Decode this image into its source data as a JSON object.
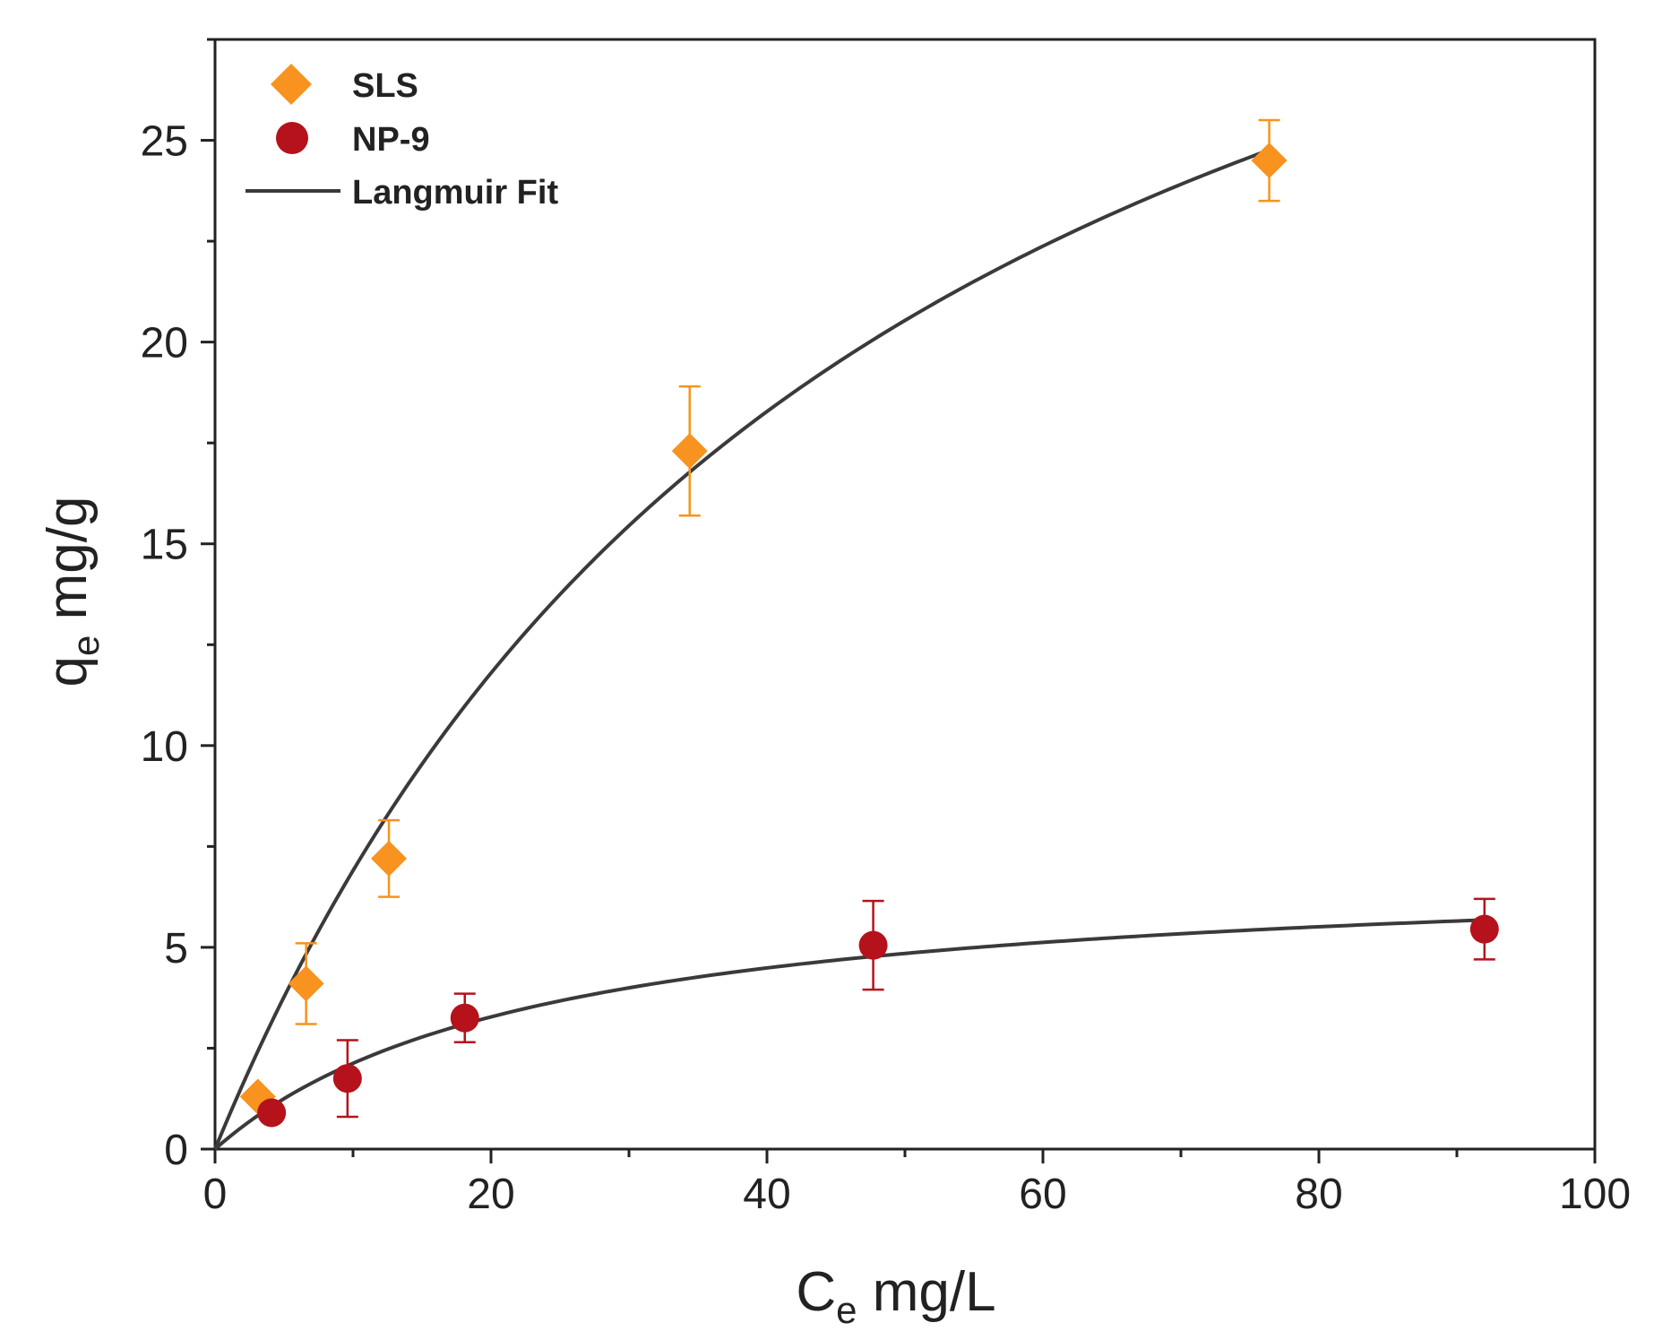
{
  "chart_data": {
    "type": "scatter",
    "title": "",
    "xlabel": {
      "main": "C",
      "sub": "e",
      "unit": " mg/L"
    },
    "ylabel": {
      "main": "q",
      "sub": "e",
      "unit": " mg/g"
    },
    "xlim": [
      0,
      100
    ],
    "ylim": [
      0,
      27.5
    ],
    "xticks": [
      0,
      20,
      40,
      60,
      80,
      100
    ],
    "xtick_labels": [
      "0",
      "20",
      "40",
      "60",
      "80",
      "100"
    ],
    "yticks": [
      0,
      5,
      10,
      15,
      20,
      25
    ],
    "ytick_labels": [
      "0",
      "5",
      "10",
      "15",
      "20",
      "25"
    ],
    "legend_position": "top-left",
    "grid": false,
    "series": [
      {
        "name": "SLS",
        "marker": "diamond",
        "color": "#F7931E",
        "points": [
          {
            "x": 3.1,
            "y": 1.3,
            "err": 0
          },
          {
            "x": 6.6,
            "y": 4.1,
            "err": 1.0
          },
          {
            "x": 12.6,
            "y": 7.2,
            "err": 0.95
          },
          {
            "x": 34.4,
            "y": 17.3,
            "err": 1.6
          },
          {
            "x": 76.4,
            "y": 24.5,
            "err": 1.0
          }
        ]
      },
      {
        "name": "NP-9",
        "marker": "circle",
        "color": "#B5121B",
        "points": [
          {
            "x": 4.1,
            "y": 0.9,
            "err": 0
          },
          {
            "x": 9.6,
            "y": 1.75,
            "err": 0.95
          },
          {
            "x": 18.1,
            "y": 3.25,
            "err": 0.6
          },
          {
            "x": 47.7,
            "y": 5.05,
            "err": 1.1
          },
          {
            "x": 92.0,
            "y": 5.45,
            "err": 0.75
          }
        ]
      }
    ],
    "fits": [
      {
        "name": "Langmuir Fit",
        "applies_to": "SLS",
        "qmax": 40.57,
        "KL": 0.0205,
        "x_range": [
          0,
          76.4
        ],
        "color": "#3a3a3a"
      },
      {
        "name": "Langmuir Fit",
        "applies_to": "NP-9",
        "qmax": 7.13,
        "KL": 0.0425,
        "x_range": [
          0,
          92.0
        ],
        "color": "#3a3a3a"
      }
    ],
    "legend": [
      {
        "label": "SLS",
        "marker": "diamond",
        "color": "#F7931E"
      },
      {
        "label": "NP-9",
        "marker": "circle",
        "color": "#B5121B"
      },
      {
        "label": "Langmuir Fit",
        "marker": "line",
        "color": "#3a3a3a"
      }
    ]
  }
}
